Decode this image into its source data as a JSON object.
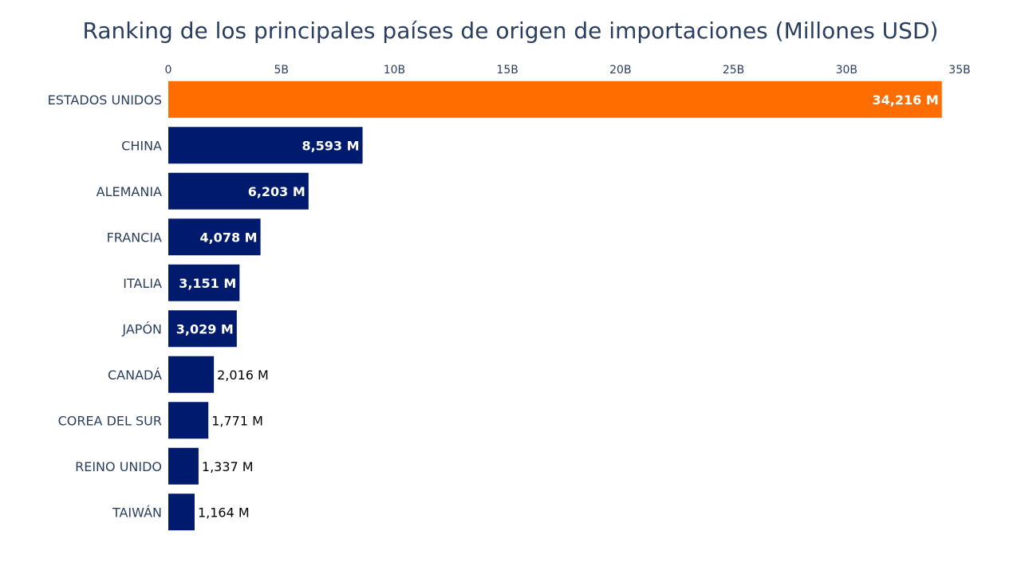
{
  "chart_data": {
    "type": "bar",
    "orientation": "horizontal",
    "title": "Ranking de los principales países de origen de importaciones (Millones USD)",
    "xlabel": "",
    "ylabel": "",
    "x_axis_position": "top",
    "xlim": [
      0,
      35000
    ],
    "x_ticks": [
      0,
      5000,
      10000,
      15000,
      20000,
      25000,
      30000,
      35000
    ],
    "x_tick_labels": [
      "0",
      "5B",
      "10B",
      "15B",
      "20B",
      "25B",
      "30B",
      "35B"
    ],
    "grid": false,
    "legend": "none",
    "categories": [
      "ESTADOS UNIDOS",
      "CHINA",
      "ALEMANIA",
      "FRANCIA",
      "ITALIA",
      "JAPÓN",
      "CANADÁ",
      "COREA DEL SUR",
      "REINO UNIDO",
      "TAIWÁN"
    ],
    "values": [
      34216,
      8593,
      6203,
      4078,
      3151,
      3029,
      2016,
      1771,
      1337,
      1164
    ],
    "data_labels": [
      "34,216 M",
      "8,593 M",
      "6,203 M",
      "4,078 M",
      "3,151 M",
      "3,029 M",
      "2,016 M",
      "1,771 M",
      "1,337 M",
      "1,164 M"
    ],
    "colors": {
      "highlight": "#ff6d00",
      "default": "#001a6e",
      "text": "#2a3f5f"
    },
    "highlight_index": 0
  }
}
